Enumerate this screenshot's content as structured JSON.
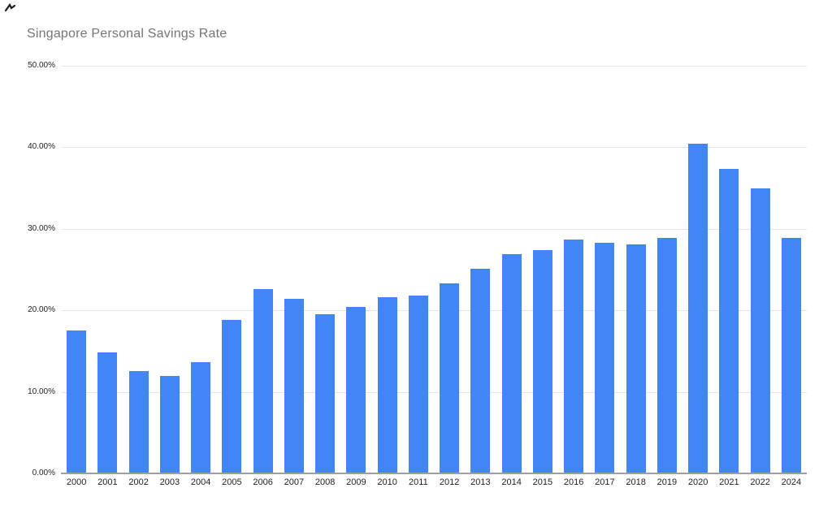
{
  "chart_data": {
    "type": "bar",
    "title": "Singapore Personal Savings Rate",
    "categories": [
      "2000",
      "2001",
      "2002",
      "2003",
      "2004",
      "2005",
      "2006",
      "2007",
      "2008",
      "2009",
      "2010",
      "2011",
      "2012",
      "2013",
      "2014",
      "2015",
      "2016",
      "2017",
      "2018",
      "2019",
      "2020",
      "2021",
      "2022",
      "2024"
    ],
    "values": [
      17.5,
      14.8,
      12.6,
      12.0,
      13.6,
      18.8,
      22.6,
      21.4,
      19.5,
      20.4,
      21.6,
      21.8,
      23.3,
      25.1,
      26.9,
      27.4,
      28.7,
      28.3,
      28.1,
      28.9,
      40.4,
      37.4,
      35.0,
      28.9
    ],
    "xlabel": "",
    "ylabel": "",
    "ylim": [
      0,
      50
    ],
    "y_tick_step": 10,
    "y_tick_labels": [
      "0.00%",
      "10.00%",
      "20.00%",
      "30.00%",
      "40.00%",
      "50.00%"
    ],
    "grid": true,
    "legend_position": "none"
  },
  "colors": {
    "bar": "#4285f4",
    "title_text": "#757575",
    "axis_text": "#222222",
    "gridline": "#e6e6e6",
    "baseline": "#9e9e9e",
    "background": "#ffffff",
    "artifact": "#1c1c1c"
  }
}
